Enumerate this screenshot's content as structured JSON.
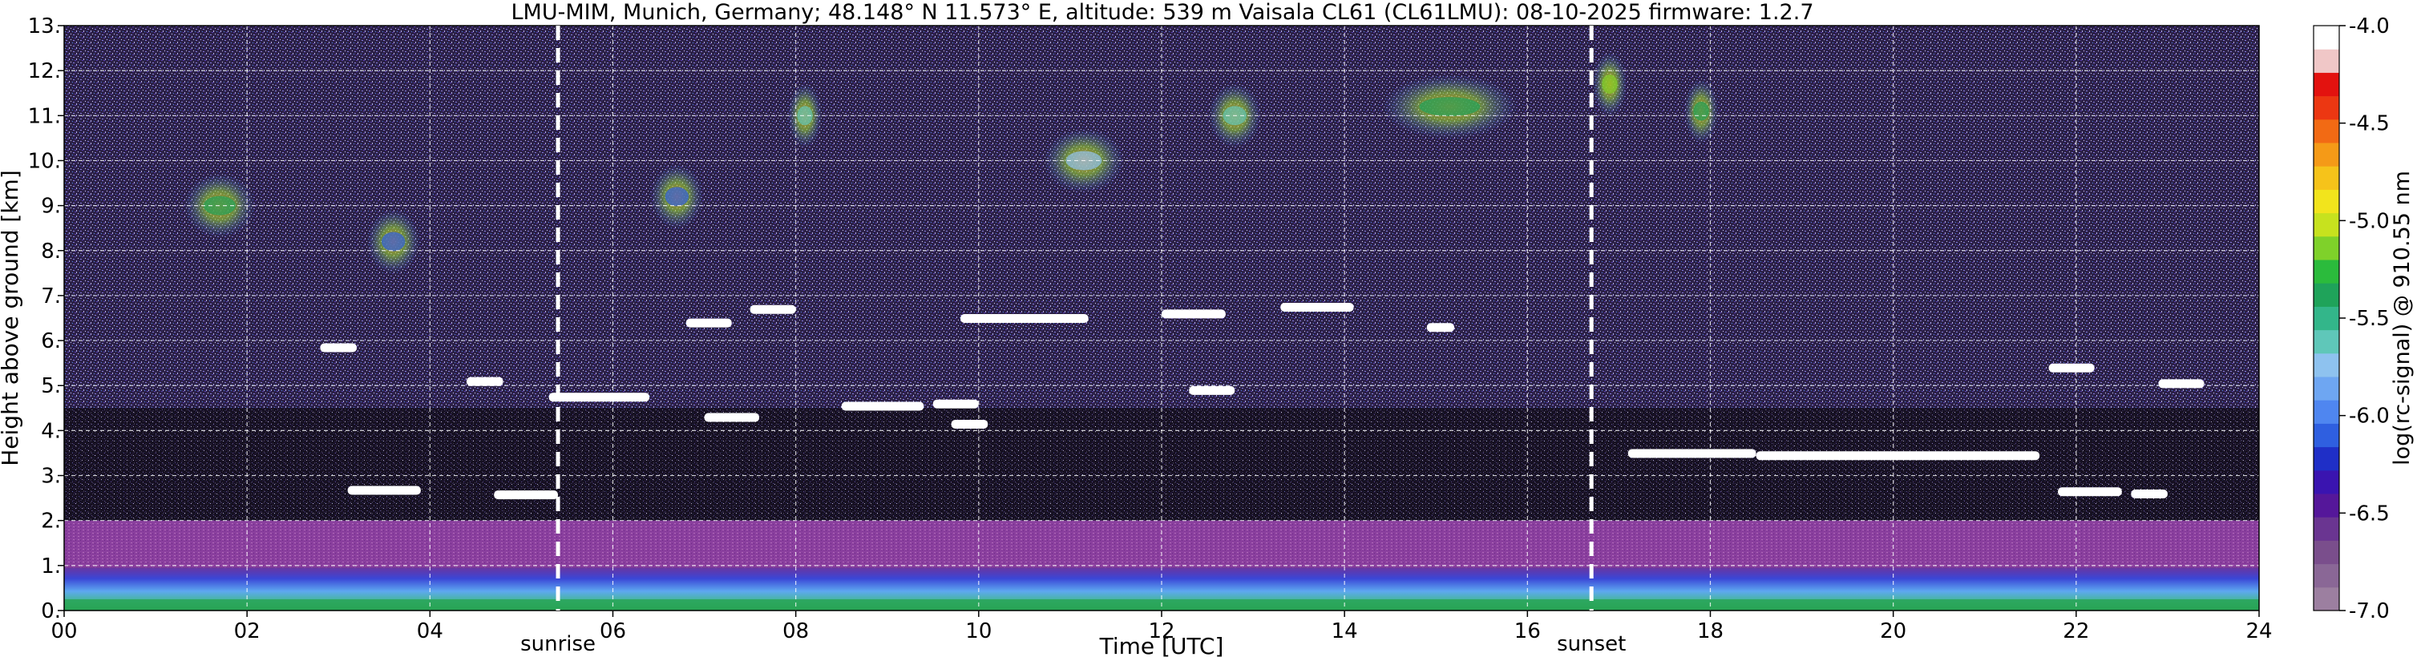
{
  "chart_data": {
    "type": "heatmap",
    "title": "LMU-MIM, Munich, Germany; 48.148° N 11.573° E, altitude: 539 m    Vaisala CL61 (CL61LMU): 08-10-2025    firmware: 1.2.7",
    "xlabel": "Time [UTC]",
    "ylabel": "Height above ground [km]",
    "xlim": [
      0,
      24
    ],
    "ylim": [
      0,
      13
    ],
    "x_ticks": [
      "00",
      "02",
      "04",
      "06",
      "08",
      "10",
      "12",
      "14",
      "16",
      "18",
      "20",
      "22",
      "24"
    ],
    "y_ticks": [
      "0.",
      "1.",
      "2.",
      "3.",
      "4.",
      "5.",
      "6.",
      "7.",
      "8.",
      "9.",
      "10.",
      "11.",
      "12.",
      "13."
    ],
    "grid": true,
    "colorbar": {
      "label": "log(rc-signal) @ 910.55 nm",
      "range": [
        -7.0,
        -4.0
      ],
      "ticks": [
        "-4.0",
        "-4.5",
        "-5.0",
        "-5.5",
        "-6.0",
        "-6.5",
        "-7.0"
      ],
      "colors": [
        "#9c7fa0",
        "#8a6796",
        "#7a4e8c",
        "#6a3591",
        "#55179a",
        "#3a14b0",
        "#1f2fc7",
        "#2f5fe0",
        "#4f86f0",
        "#6ea6f2",
        "#8ec2ef",
        "#5fc7b9",
        "#33b68a",
        "#1fa35a",
        "#2bbb3c",
        "#7fd12a",
        "#c7e21e",
        "#f2e41c",
        "#f6c31a",
        "#f59a17",
        "#f26a14",
        "#ec3712",
        "#e3120f",
        "#f0c7c7",
        "#ffffff"
      ]
    },
    "annotations": [
      {
        "x": 5.4,
        "label": "sunrise"
      },
      {
        "x": 16.7,
        "label": "sunset"
      }
    ],
    "cloud_layers": [
      {
        "t_start": 2.8,
        "t_end": 3.2,
        "height_km": 5.85
      },
      {
        "t_start": 4.4,
        "t_end": 4.8,
        "height_km": 5.1
      },
      {
        "t_start": 5.3,
        "t_end": 6.4,
        "height_km": 4.75
      },
      {
        "t_start": 3.1,
        "t_end": 3.9,
        "height_km": 2.68
      },
      {
        "t_start": 4.7,
        "t_end": 5.4,
        "height_km": 2.58
      },
      {
        "t_start": 6.8,
        "t_end": 7.3,
        "height_km": 6.4
      },
      {
        "t_start": 7.5,
        "t_end": 8.0,
        "height_km": 6.7
      },
      {
        "t_start": 7.0,
        "t_end": 7.6,
        "height_km": 4.3
      },
      {
        "t_start": 8.5,
        "t_end": 9.4,
        "height_km": 4.55
      },
      {
        "t_start": 9.5,
        "t_end": 10.0,
        "height_km": 4.6
      },
      {
        "t_start": 9.7,
        "t_end": 10.1,
        "height_km": 4.15
      },
      {
        "t_start": 9.8,
        "t_end": 11.2,
        "height_km": 6.5
      },
      {
        "t_start": 12.0,
        "t_end": 12.7,
        "height_km": 6.6
      },
      {
        "t_start": 12.3,
        "t_end": 12.8,
        "height_km": 4.9
      },
      {
        "t_start": 13.3,
        "t_end": 14.1,
        "height_km": 6.75
      },
      {
        "t_start": 14.9,
        "t_end": 15.2,
        "height_km": 6.3
      },
      {
        "t_start": 17.1,
        "t_end": 18.5,
        "height_km": 3.5
      },
      {
        "t_start": 18.5,
        "t_end": 21.6,
        "height_km": 3.45
      },
      {
        "t_start": 21.8,
        "t_end": 22.5,
        "height_km": 2.65
      },
      {
        "t_start": 22.6,
        "t_end": 23.0,
        "height_km": 2.6
      },
      {
        "t_start": 21.7,
        "t_end": 22.2,
        "height_km": 5.4
      },
      {
        "t_start": 22.9,
        "t_end": 23.4,
        "height_km": 5.05
      }
    ],
    "aerosol_layers": [
      {
        "t_start": 0.0,
        "t_end": 24.0,
        "height_km_top": 0.95,
        "level": -6.4
      },
      {
        "t_start": 0.0,
        "t_end": 24.0,
        "height_km_top": 2.0,
        "level": -6.8
      }
    ],
    "cirrus_patches": [
      {
        "t_start": 1.4,
        "t_end": 2.0,
        "height_km": 9.0,
        "level": -5.4
      },
      {
        "t_start": 3.4,
        "t_end": 3.8,
        "height_km": 8.2,
        "level": -6.1
      },
      {
        "t_start": 6.5,
        "t_end": 6.9,
        "height_km": 9.2,
        "level": -6.1
      },
      {
        "t_start": 8.0,
        "t_end": 8.2,
        "height_km": 11.0,
        "level": -5.6
      },
      {
        "t_start": 10.8,
        "t_end": 11.5,
        "height_km": 10.0,
        "level": -5.7
      },
      {
        "t_start": 12.6,
        "t_end": 13.0,
        "height_km": 11.0,
        "level": -5.6
      },
      {
        "t_start": 14.5,
        "t_end": 15.8,
        "height_km": 11.2,
        "level": -5.4
      },
      {
        "t_start": 16.8,
        "t_end": 17.0,
        "height_km": 11.7,
        "level": -5.2
      },
      {
        "t_start": 17.8,
        "t_end": 18.0,
        "height_km": 11.1,
        "level": -5.4
      }
    ]
  }
}
